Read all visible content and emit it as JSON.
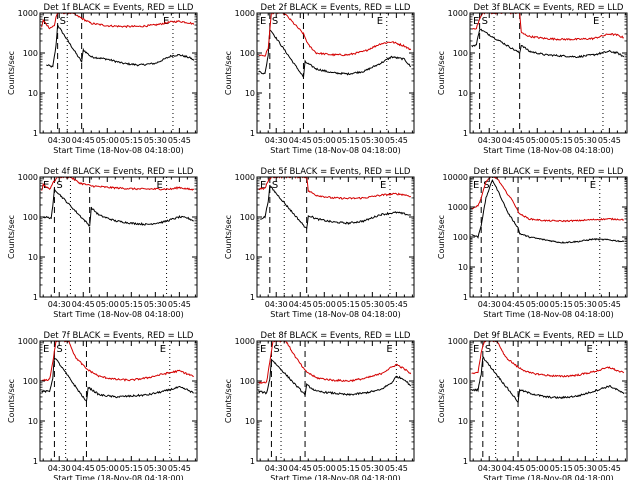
{
  "xlabel": "Start Time (18-Nov-08 04:18:00)",
  "ylabel": "Counts/sec",
  "xticklabels": [
    "04:30",
    "04:45",
    "05:00",
    "05:15",
    "05:30",
    "05:45"
  ],
  "yticklabels": [
    "1",
    "10",
    "100",
    "1000",
    "10000"
  ],
  "colors": {
    "events": "#000000",
    "lld": "#d40000",
    "axes": "#000000"
  },
  "chart_data": [
    {
      "type": "line",
      "title": "Det 1f BLACK = Events, RED = LLD",
      "yticklabels": [
        "1",
        "10",
        "100",
        "1000"
      ],
      "ylim": [
        1,
        1000
      ],
      "xlim": [
        "04:18",
        "05:56"
      ],
      "yscale": "log",
      "flags": [
        "E",
        "S",
        "E"
      ],
      "dashed_x": [
        "04:29",
        "04:44"
      ],
      "dotted_x": [
        "04:35",
        "05:41"
      ],
      "series": [
        {
          "key": "events",
          "x": [
            "04:22",
            "04:26",
            "04:28",
            "04:29",
            "04:44",
            "04:45",
            "04:50",
            "05:00",
            "05:10",
            "05:20",
            "05:30",
            "05:40",
            "05:45",
            "05:52",
            "05:54"
          ],
          "values": [
            50,
            45,
            150,
            500,
            60,
            120,
            80,
            70,
            55,
            50,
            55,
            85,
            90,
            75,
            65
          ]
        },
        {
          "key": "lld",
          "x": [
            "04:19",
            "04:20",
            "04:24",
            "04:27",
            "04:28",
            "04:29",
            "04:38",
            "04:45",
            "04:50",
            "05:00",
            "05:10",
            "05:20",
            "05:30",
            "05:40",
            "05:45",
            "05:52",
            "05:54"
          ],
          "values": [
            450,
            650,
            420,
            480,
            800,
            1000,
            1000,
            700,
            550,
            480,
            460,
            460,
            500,
            600,
            620,
            560,
            520
          ]
        }
      ]
    },
    {
      "type": "line",
      "title": "Det 2f BLACK = Events, RED = LLD",
      "yticklabels": [
        "1",
        "10",
        "100",
        "1000"
      ],
      "ylim": [
        1,
        1000
      ],
      "xlim": [
        "04:18",
        "05:56"
      ],
      "yscale": "log",
      "flags": [
        "E",
        "S",
        "E"
      ],
      "dashed_x": [
        "04:26",
        "04:47"
      ],
      "dotted_x": [
        "04:35",
        "05:39"
      ],
      "series": [
        {
          "key": "events",
          "x": [
            "04:19",
            "04:23",
            "04:25",
            "04:26",
            "04:47",
            "04:48",
            "04:55",
            "05:05",
            "05:15",
            "05:25",
            "05:35",
            "05:42",
            "05:50",
            "05:54"
          ],
          "values": [
            35,
            30,
            90,
            400,
            25,
            60,
            40,
            32,
            30,
            35,
            55,
            80,
            70,
            45
          ]
        },
        {
          "key": "lld",
          "x": [
            "04:19",
            "04:23",
            "04:25",
            "04:27",
            "04:35",
            "04:47",
            "04:50",
            "04:55",
            "05:05",
            "05:15",
            "05:25",
            "05:35",
            "05:42",
            "05:50",
            "05:54"
          ],
          "values": [
            90,
            85,
            130,
            1000,
            1000,
            300,
            160,
            100,
            90,
            90,
            110,
            170,
            190,
            150,
            120
          ]
        }
      ]
    },
    {
      "type": "line",
      "title": "Det 3f BLACK = Events, RED = LLD",
      "yticklabels": [
        "1",
        "10",
        "100",
        "1000"
      ],
      "ylim": [
        1,
        1000
      ],
      "xlim": [
        "04:18",
        "05:56"
      ],
      "yscale": "log",
      "flags": [
        "E",
        "S",
        "E"
      ],
      "dashed_x": [
        "04:24",
        "04:49"
      ],
      "dotted_x": [
        "04:33",
        "05:41"
      ],
      "series": [
        {
          "key": "events",
          "x": [
            "04:19",
            "04:22",
            "04:24",
            "04:49",
            "04:50",
            "04:55",
            "05:05",
            "05:15",
            "05:25",
            "05:35",
            "05:45",
            "05:50",
            "05:54"
          ],
          "values": [
            150,
            160,
            400,
            100,
            160,
            110,
            90,
            85,
            80,
            90,
            110,
            100,
            80
          ]
        },
        {
          "key": "lld",
          "x": [
            "04:19",
            "04:22",
            "04:24",
            "04:26",
            "04:49",
            "04:50",
            "04:55",
            "05:05",
            "05:15",
            "05:25",
            "05:35",
            "05:45",
            "05:50",
            "05:54"
          ],
          "values": [
            400,
            420,
            700,
            1000,
            1000,
            320,
            260,
            230,
            220,
            220,
            230,
            300,
            280,
            240
          ]
        }
      ]
    },
    {
      "type": "line",
      "title": "Det 4f BLACK = Events, RED = LLD",
      "yticklabels": [
        "1",
        "10",
        "100",
        "1000"
      ],
      "ylim": [
        1,
        1000
      ],
      "xlim": [
        "04:18",
        "05:56"
      ],
      "yscale": "log",
      "flags": [
        "E",
        "S",
        "E"
      ],
      "dashed_x": [
        "04:27",
        "04:49"
      ],
      "dotted_x": [
        "04:37",
        "05:37"
      ],
      "series": [
        {
          "key": "events",
          "x": [
            "04:20",
            "04:25",
            "04:26",
            "04:27",
            "04:49",
            "04:50",
            "04:55",
            "05:05",
            "05:15",
            "05:25",
            "05:35",
            "05:45",
            "05:50",
            "05:54"
          ],
          "values": [
            100,
            95,
            180,
            500,
            60,
            170,
            110,
            80,
            70,
            65,
            75,
            100,
            95,
            80
          ]
        },
        {
          "key": "lld",
          "x": [
            "04:19",
            "04:20",
            "04:24",
            "04:26",
            "04:29",
            "04:37",
            "04:43",
            "04:50",
            "05:00",
            "05:10",
            "05:20",
            "05:30",
            "05:40",
            "05:45",
            "05:50",
            "05:54"
          ],
          "values": [
            450,
            650,
            500,
            700,
            1000,
            1000,
            700,
            600,
            550,
            520,
            500,
            500,
            500,
            550,
            500,
            480
          ]
        }
      ]
    },
    {
      "type": "line",
      "title": "Det 5f BLACK = Events, RED = LLD",
      "yticklabels": [
        "1",
        "10",
        "100",
        "1000"
      ],
      "ylim": [
        1,
        1000
      ],
      "xlim": [
        "04:18",
        "05:56"
      ],
      "yscale": "log",
      "flags": [
        "E",
        "S",
        "E"
      ],
      "dashed_x": [
        "04:26",
        "04:49"
      ],
      "dotted_x": [
        "04:35",
        "05:41"
      ],
      "series": [
        {
          "key": "events",
          "x": [
            "04:20",
            "04:23",
            "04:25",
            "04:26",
            "04:49",
            "04:50",
            "04:55",
            "05:05",
            "05:15",
            "05:25",
            "05:35",
            "05:45",
            "05:50",
            "05:54"
          ],
          "values": [
            90,
            100,
            250,
            600,
            50,
            110,
            90,
            75,
            70,
            80,
            115,
            130,
            120,
            110
          ]
        },
        {
          "key": "lld",
          "x": [
            "04:19",
            "04:23",
            "04:25",
            "04:27",
            "04:49",
            "04:50",
            "04:55",
            "05:05",
            "05:15",
            "05:25",
            "05:35",
            "05:45",
            "05:50",
            "05:54"
          ],
          "values": [
            500,
            520,
            800,
            1000,
            1000,
            450,
            350,
            300,
            290,
            300,
            350,
            380,
            360,
            330
          ]
        }
      ]
    },
    {
      "type": "line",
      "title": "Det 6f BLACK = Events, RED = LLD",
      "yticklabels": [
        "1",
        "10",
        "100",
        "1000",
        "10000"
      ],
      "ylim": [
        1,
        10000
      ],
      "xlim": [
        "04:18",
        "05:56"
      ],
      "yscale": "log",
      "flags": [
        "E",
        "S",
        "E"
      ],
      "dashed_x": [
        "04:25",
        "04:48"
      ],
      "dotted_x": [
        "04:32",
        "05:39"
      ],
      "series": [
        {
          "key": "events",
          "x": [
            "04:19",
            "04:23",
            "04:25",
            "04:28",
            "04:32",
            "04:36",
            "04:42",
            "04:48",
            "04:49",
            "04:55",
            "05:05",
            "05:15",
            "05:25",
            "05:35",
            "05:45",
            "05:54"
          ],
          "values": [
            120,
            100,
            250,
            2000,
            8000,
            3000,
            600,
            200,
            130,
            100,
            80,
            65,
            70,
            85,
            80,
            70
          ]
        },
        {
          "key": "lld",
          "x": [
            "04:19",
            "04:23",
            "04:25",
            "04:28",
            "04:31",
            "04:35",
            "04:40",
            "04:45",
            "04:48",
            "04:50",
            "04:55",
            "05:05",
            "05:15",
            "05:25",
            "05:35",
            "05:45",
            "05:54"
          ],
          "values": [
            900,
            1100,
            2000,
            7000,
            10000,
            9000,
            3500,
            1500,
            700,
            550,
            400,
            350,
            340,
            350,
            380,
            400,
            380
          ]
        }
      ]
    },
    {
      "type": "line",
      "title": "Det 7f BLACK = Events, RED = LLD",
      "yticklabels": [
        "1",
        "10",
        "100",
        "1000"
      ],
      "ylim": [
        1,
        1000
      ],
      "xlim": [
        "04:18",
        "05:56"
      ],
      "yscale": "log",
      "flags": [
        "E",
        "S",
        "E"
      ],
      "dashed_x": [
        "04:27",
        "04:47"
      ],
      "dotted_x": [
        "04:34",
        "05:39"
      ],
      "series": [
        {
          "key": "events",
          "x": [
            "04:19",
            "04:24",
            "04:26",
            "04:27",
            "04:47",
            "04:48",
            "04:55",
            "05:05",
            "05:15",
            "05:25",
            "05:35",
            "05:45",
            "05:50",
            "05:54"
          ],
          "values": [
            55,
            55,
            120,
            400,
            30,
            70,
            45,
            40,
            42,
            45,
            55,
            70,
            60,
            50
          ]
        },
        {
          "key": "lld",
          "x": [
            "04:19",
            "04:24",
            "04:26",
            "04:28",
            "04:36",
            "04:40",
            "04:47",
            "04:55",
            "05:05",
            "05:15",
            "05:25",
            "05:35",
            "05:45",
            "05:50",
            "05:54"
          ],
          "values": [
            100,
            110,
            300,
            1000,
            1000,
            400,
            200,
            130,
            110,
            105,
            120,
            150,
            180,
            150,
            130
          ]
        }
      ]
    },
    {
      "type": "line",
      "title": "Det 8f BLACK = Events, RED = LLD",
      "yticklabels": [
        "1",
        "10",
        "100",
        "1000"
      ],
      "ylim": [
        1,
        1000
      ],
      "xlim": [
        "04:18",
        "05:56"
      ],
      "yscale": "log",
      "flags": [
        "E",
        "S",
        "E"
      ],
      "dashed_x": [
        "04:27",
        "04:48"
      ],
      "dotted_x": [
        "04:33",
        "05:45"
      ],
      "series": [
        {
          "key": "events",
          "x": [
            "04:19",
            "04:24",
            "04:26",
            "04:27",
            "04:48",
            "04:49",
            "04:55",
            "05:05",
            "05:15",
            "05:25",
            "05:35",
            "05:42",
            "05:45",
            "05:50",
            "05:54"
          ],
          "values": [
            55,
            50,
            110,
            350,
            45,
            80,
            55,
            50,
            45,
            50,
            60,
            90,
            130,
            110,
            75
          ]
        },
        {
          "key": "lld",
          "x": [
            "04:19",
            "04:24",
            "04:26",
            "04:28",
            "04:36",
            "04:42",
            "04:48",
            "04:55",
            "05:05",
            "05:15",
            "05:25",
            "05:35",
            "05:42",
            "05:45",
            "05:50",
            "05:54"
          ],
          "values": [
            90,
            95,
            300,
            1000,
            1000,
            400,
            180,
            120,
            105,
            100,
            115,
            150,
            220,
            260,
            200,
            150
          ]
        }
      ]
    },
    {
      "type": "line",
      "title": "Det 9f BLACK = Events, RED = LLD",
      "yticklabels": [
        "1",
        "10",
        "100",
        "1000"
      ],
      "ylim": [
        1,
        1000
      ],
      "xlim": [
        "04:18",
        "05:56"
      ],
      "yscale": "log",
      "flags": [
        "E",
        "S",
        "E"
      ],
      "dashed_x": [
        "04:26",
        "04:48"
      ],
      "dotted_x": [
        "04:34",
        "05:37"
      ],
      "series": [
        {
          "key": "events",
          "x": [
            "04:19",
            "04:23",
            "04:25",
            "04:26",
            "04:48",
            "04:49",
            "04:55",
            "05:05",
            "05:15",
            "05:25",
            "05:35",
            "05:45",
            "05:50",
            "05:54"
          ],
          "values": [
            60,
            60,
            150,
            400,
            30,
            60,
            50,
            40,
            38,
            42,
            55,
            75,
            60,
            48
          ]
        },
        {
          "key": "lld",
          "x": [
            "04:19",
            "04:23",
            "04:25",
            "04:27",
            "04:35",
            "04:40",
            "04:48",
            "04:55",
            "05:05",
            "05:15",
            "05:25",
            "05:35",
            "05:45",
            "05:50",
            "05:54"
          ],
          "values": [
            150,
            170,
            500,
            1000,
            1000,
            400,
            220,
            160,
            140,
            130,
            140,
            170,
            220,
            180,
            160
          ]
        }
      ]
    }
  ]
}
